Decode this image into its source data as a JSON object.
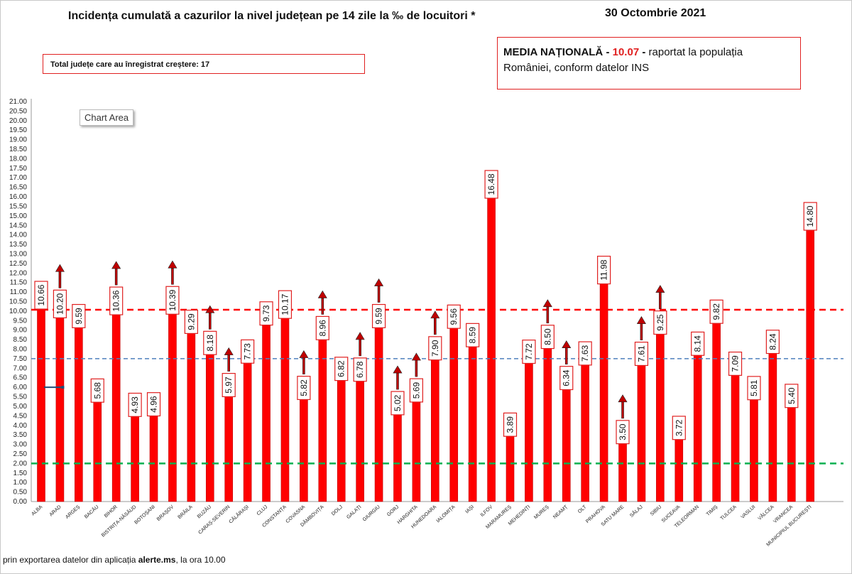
{
  "header": {
    "title": "Incidența cumulată a cazurilor la nivel județean pe 14 zile la ‰ de locuitori *",
    "date": "30 Octombrie 2021"
  },
  "increase_box": {
    "text": "Total județe care au înregistrat creștere:  17"
  },
  "national_box": {
    "label": "MEDIA NAȚIONALĂ",
    "sep1": " - ",
    "value": "10.07",
    "sep2": " -  ",
    "text1": "raportat la populația",
    "text2": "României, conform datelor INS"
  },
  "chart_area_label": "Chart Area",
  "footnote": {
    "prefix": "prin exportarea datelor din aplicația ",
    "source": "alerte.ms",
    "suffix": ", la ora 10.00"
  },
  "colors": {
    "bar": "#ff0000",
    "bar_edge": "#c00000",
    "label_border": "#e02020",
    "arrow": "#c00000",
    "red_line": "#ff0000",
    "blue_line": "#4f81bd",
    "green_line": "#00b050"
  },
  "chart_data": {
    "type": "bar",
    "title": "Incidența cumulată a cazurilor la nivel județean pe 14 zile la ‰ de locuitori *",
    "xlabel": "",
    "ylabel": "",
    "ylim": [
      0,
      21
    ],
    "y_tick_step": 0.5,
    "categories": [
      "ALBA",
      "ARAD",
      "ARGEȘ",
      "BACĂU",
      "BIHOR",
      "BISTRIȚA-NĂSĂUD",
      "BOTOȘANI",
      "BRAȘOV",
      "BRĂILA",
      "BUZĂU",
      "CARAȘ-SEVERIN",
      "CĂLĂRAȘI",
      "CLUJ",
      "CONSTANȚA",
      "COVASNA",
      "DÂMBOVIȚA",
      "DOLJ",
      "GALAȚI",
      "GIURGIU",
      "GORJ",
      "HARGHITA",
      "HUNEDOARA",
      "IALOMIȚA",
      "IAȘI",
      "ILFOV",
      "MARAMUREȘ",
      "MEHEDINȚI",
      "MUREȘ",
      "NEAMȚ",
      "OLT",
      "PRAHOVA",
      "SATU MARE",
      "SĂLAJ",
      "SIBIU",
      "SUCEAVA",
      "TELEORMAN",
      "TIMIȘ",
      "TULCEA",
      "VASLUI",
      "VÂLCEA",
      "VRANCEA",
      "MUNICIPIUL BUCUREȘTI"
    ],
    "values": [
      10.66,
      10.2,
      9.59,
      5.68,
      10.36,
      4.93,
      4.96,
      10.39,
      9.29,
      8.18,
      5.97,
      7.73,
      9.73,
      10.17,
      5.82,
      8.96,
      6.82,
      6.78,
      9.59,
      5.02,
      5.69,
      7.9,
      9.56,
      8.59,
      16.48,
      3.89,
      7.72,
      8.5,
      6.34,
      7.63,
      11.98,
      3.5,
      7.61,
      9.25,
      3.72,
      8.14,
      9.82,
      7.09,
      5.81,
      8.24,
      5.4,
      14.8
    ],
    "labels": [
      "10.66",
      "10.20",
      "9.59",
      "5.68",
      "10.36",
      "4.93",
      "4.96",
      "10.39",
      "9.29",
      "8.18",
      "5.97",
      "7.73",
      "9.73",
      "10.17",
      "5.82",
      "8.96",
      "6.82",
      "6.78",
      "9.59",
      "5.02",
      "5.69",
      "7.90",
      "9.56",
      "8.59",
      "16.48",
      "3.89",
      "7.72",
      "8.50",
      "6.34",
      "7.63",
      "11.98",
      "3.50",
      "7.61",
      "9.25",
      "3.72",
      "8.14",
      "9.82",
      "7.09",
      "5.81",
      "8.24",
      "5.40",
      "14.80"
    ],
    "increase_arrows": [
      false,
      true,
      false,
      false,
      true,
      false,
      false,
      true,
      false,
      true,
      true,
      false,
      false,
      false,
      true,
      true,
      false,
      true,
      true,
      true,
      true,
      true,
      false,
      false,
      false,
      false,
      false,
      true,
      true,
      false,
      false,
      true,
      true,
      true,
      false,
      false,
      false,
      false,
      false,
      false,
      false,
      false
    ],
    "reference_lines": [
      {
        "name": "national-average",
        "value": 10.07,
        "color": "#ff0000",
        "style": "dashed"
      },
      {
        "name": "threshold-7-5",
        "value": 7.5,
        "color": "#4f81bd",
        "style": "dashed"
      },
      {
        "name": "threshold-2",
        "value": 2.0,
        "color": "#00b050",
        "style": "dashed"
      }
    ],
    "small_marker": {
      "category_from": "ALBA",
      "category_to": "ARAD",
      "value": 6.0,
      "color": "#1f4e79"
    }
  }
}
